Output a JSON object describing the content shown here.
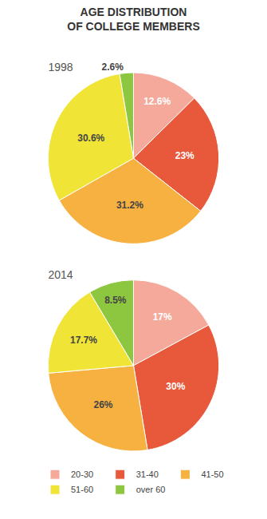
{
  "title": "AGE DISTRIBUTION\nOF COLLEGE MEMBERS",
  "chart_data": [
    {
      "type": "pie",
      "title": "1998",
      "categories": [
        "20-30",
        "31-40",
        "41-50",
        "51-60",
        "over 60"
      ],
      "values": [
        12.6,
        23.0,
        31.2,
        30.6,
        2.6
      ],
      "value_labels": [
        "12.6%",
        "23%",
        "31.2%",
        "30.6%",
        "2.6%"
      ],
      "colors": [
        "#f5a99b",
        "#e8583a",
        "#f6b140",
        "#f0e436",
        "#8dc63f"
      ],
      "data_labels": true,
      "legend": "bottom"
    },
    {
      "type": "pie",
      "title": "2014",
      "categories": [
        "20-30",
        "31-40",
        "41-50",
        "51-60",
        "over 60"
      ],
      "values": [
        17.0,
        30.0,
        26.0,
        17.7,
        8.5
      ],
      "value_labels": [
        "17%",
        "30%",
        "26%",
        "17.7%",
        "8.5%"
      ],
      "colors": [
        "#f5a99b",
        "#e8583a",
        "#f6b140",
        "#f0e436",
        "#8dc63f"
      ],
      "data_labels": true,
      "legend": "bottom"
    }
  ]
}
